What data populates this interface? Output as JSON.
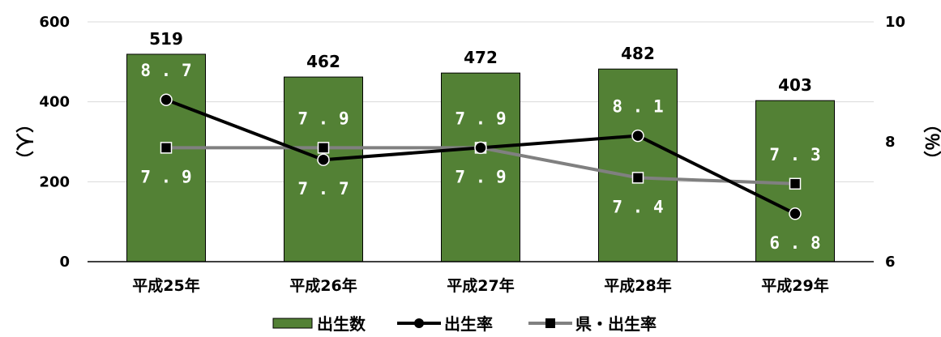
{
  "chart_data": {
    "type": "bar",
    "categories": [
      "平成25年",
      "平成26年",
      "平成27年",
      "平成28年",
      "平成29年"
    ],
    "series": [
      {
        "name": "出生数",
        "kind": "bar",
        "axis": "left",
        "values": [
          519,
          462,
          472,
          482,
          403
        ],
        "labels": [
          "519",
          "462",
          "472",
          "482",
          "403"
        ],
        "color": "#538135",
        "edge_color": "#000000"
      },
      {
        "name": "出生率",
        "kind": "line",
        "axis": "right",
        "marker": "circle",
        "values": [
          8.7,
          7.7,
          7.9,
          8.1,
          6.8
        ],
        "labels": [
          "8.7",
          "7.7",
          "7.9",
          "8.1",
          "6.8"
        ],
        "color": "#000000"
      },
      {
        "name": "県・出生率",
        "kind": "line",
        "axis": "right",
        "marker": "square",
        "values": [
          7.9,
          7.9,
          7.9,
          7.4,
          7.3
        ],
        "labels": [
          "7.9",
          "7.9",
          "7.9",
          "7.4",
          "7.3"
        ],
        "color": "#808080"
      }
    ],
    "ylabel": "（人）",
    "y2label": "（％）",
    "ylim": [
      0,
      600
    ],
    "yticks": [
      "0",
      "200",
      "400",
      "600"
    ],
    "y2lim": [
      6,
      10
    ],
    "y2ticks": [
      "6",
      "8",
      "10"
    ],
    "grid": true,
    "legend_position": "bottom"
  }
}
